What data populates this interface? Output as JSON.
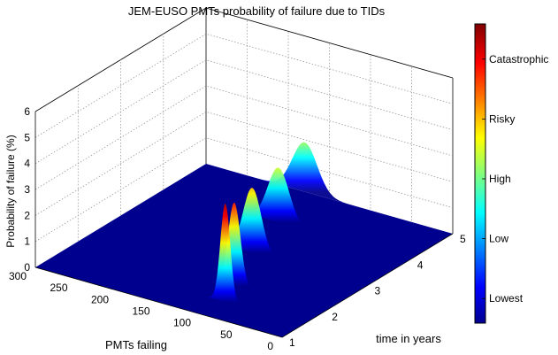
{
  "chart_data": {
    "type": "surface",
    "title": "JEM-EUSO PMTs probability of failure due to TIDs",
    "xlabel": "PMTs failing",
    "ylabel": "time in years",
    "zlabel": "Probability of failure (%)",
    "x_ticks": [
      "0",
      "50",
      "100",
      "150",
      "200",
      "250",
      "300"
    ],
    "y_ticks": [
      "1",
      "2",
      "3",
      "4",
      "5"
    ],
    "z_ticks": [
      "0",
      "1",
      "2",
      "3",
      "4",
      "5",
      "6"
    ],
    "xlim": [
      0,
      300
    ],
    "ylim": [
      1,
      5
    ],
    "zlim": [
      0,
      6
    ],
    "grid": true,
    "colormap": "jet",
    "colorbar_labels": [
      "Lowest",
      "Low",
      "High",
      "Risky",
      "Catastrophic"
    ],
    "peaks": [
      {
        "time": 1.0,
        "pmts": 72,
        "sigma": 3.6,
        "prob": 0.0
      },
      {
        "time": 1.5,
        "pmts": 95,
        "sigma": 6.0,
        "prob": 3.8
      },
      {
        "time": 2.0,
        "pmts": 110,
        "sigma": 7.5,
        "prob": 3.2
      },
      {
        "time": 3.0,
        "pmts": 140,
        "sigma": 11.0,
        "prob": 2.5
      },
      {
        "time": 4.0,
        "pmts": 160,
        "sigma": 13.0,
        "prob": 2.1
      },
      {
        "time": 5.0,
        "pmts": 180,
        "sigma": 15.0,
        "prob": 1.9
      }
    ],
    "colors": {
      "axis": "#000000",
      "grid": "#9a9a9a",
      "background": "#ffffff"
    }
  }
}
